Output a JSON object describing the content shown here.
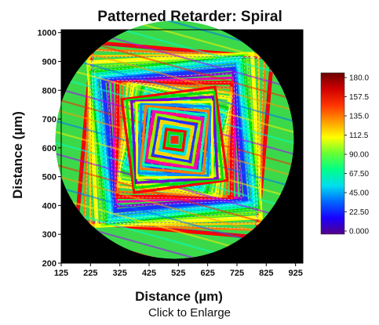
{
  "chart_data": {
    "type": "heatmap",
    "title": "Patterned Retarder: Spiral",
    "xlabel": "Distance (µm)",
    "ylabel": "Distance (µm)",
    "xlim": [
      125,
      950
    ],
    "ylim": [
      200,
      1010
    ],
    "x_ticks": [
      "125",
      "225",
      "325",
      "425",
      "525",
      "625",
      "725",
      "825",
      "925"
    ],
    "y_ticks": [
      "200",
      "300",
      "400",
      "500",
      "600",
      "700",
      "800",
      "900",
      "1000"
    ],
    "colorbar": {
      "range": [
        0,
        180
      ],
      "labels": [
        "180.0",
        "157.5",
        "135.0",
        "112.5",
        "90.00",
        "67.50",
        "45.00",
        "22.50",
        "0.000"
      ],
      "colors": [
        "#6a0000",
        "#d00000",
        "#ff3300",
        "#ff9900",
        "#ffff00",
        "#66ff33",
        "#00ff88",
        "#00ddee",
        "#0066ff",
        "#1a00ff",
        "#550088"
      ]
    },
    "pattern": "square-spiral",
    "aperture": "circular",
    "center": [
      512,
      628
    ],
    "background_color": "#000000"
  },
  "caption": {
    "link_text": "Click to Enlarge"
  }
}
